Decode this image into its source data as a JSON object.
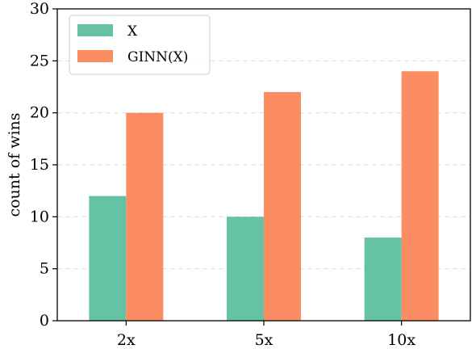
{
  "chart_data": {
    "type": "bar",
    "categories": [
      "2x",
      "5x",
      "10x"
    ],
    "series": [
      {
        "name": "X",
        "values": [
          12,
          10,
          8
        ],
        "color": "#66c2a5"
      },
      {
        "name": "GINN(X)",
        "values": [
          20,
          22,
          24
        ],
        "color": "#fc8d62"
      }
    ],
    "xlabel": "",
    "ylabel": "count of wins",
    "ylim": [
      0,
      30
    ],
    "yticks": [
      0,
      5,
      10,
      15,
      20,
      25,
      30
    ],
    "grid": {
      "axis": "y",
      "style": "dashed",
      "color": "#e0e0e0"
    },
    "legend": {
      "position": "top-left"
    }
  }
}
